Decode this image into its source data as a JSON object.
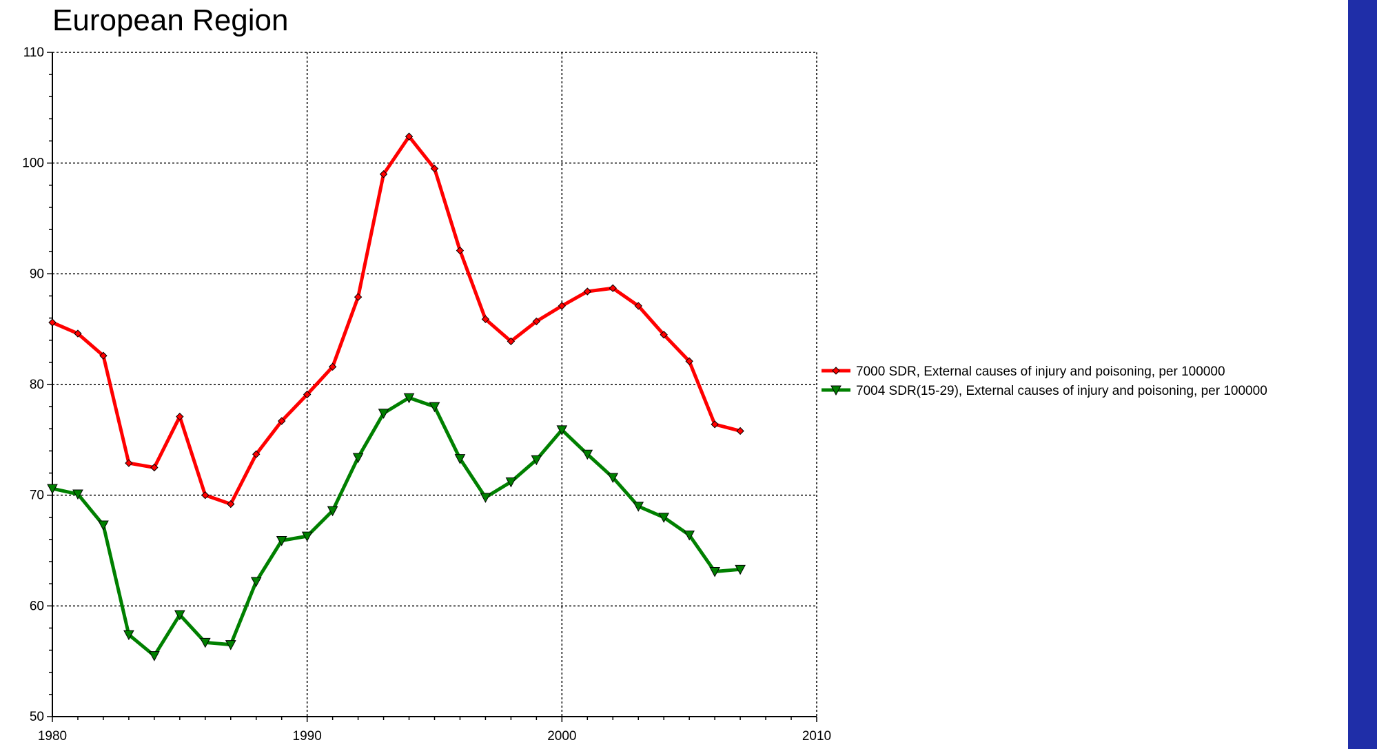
{
  "chart_data": {
    "type": "line",
    "title": "European Region",
    "xlabel": "",
    "ylabel": "",
    "xlim": [
      1980,
      2010
    ],
    "ylim": [
      50,
      110
    ],
    "xticks": [
      1980,
      1990,
      2000,
      2010
    ],
    "yticks": [
      50,
      60,
      70,
      80,
      90,
      100,
      110
    ],
    "grid": true,
    "legend_position": "right",
    "x": [
      1980,
      1981,
      1982,
      1983,
      1984,
      1985,
      1986,
      1987,
      1988,
      1989,
      1990,
      1991,
      1992,
      1993,
      1994,
      1995,
      1996,
      1997,
      1998,
      1999,
      2000,
      2001,
      2002,
      2003,
      2004,
      2005,
      2006,
      2007
    ],
    "series": [
      {
        "name": "7000 SDR, External causes of injury and poisoning, per 100000",
        "color": "#ff0000",
        "marker": "diamond",
        "values": [
          85.6,
          84.6,
          82.6,
          72.9,
          72.5,
          77.1,
          70.0,
          69.2,
          73.7,
          76.7,
          79.1,
          81.6,
          87.9,
          99.0,
          102.4,
          99.5,
          92.1,
          85.9,
          83.9,
          85.7,
          87.1,
          88.4,
          88.7,
          87.1,
          84.5,
          82.1,
          76.4,
          75.8
        ]
      },
      {
        "name": "7004 SDR(15-29), External causes of injury and poisoning, per 100000",
        "color": "#008000",
        "marker": "triangle-down",
        "values": [
          70.6,
          70.1,
          67.3,
          57.4,
          55.5,
          59.2,
          56.7,
          56.5,
          62.2,
          65.9,
          66.3,
          68.6,
          73.4,
          77.4,
          78.8,
          78.0,
          73.3,
          69.8,
          71.2,
          73.2,
          75.9,
          73.7,
          71.6,
          69.0,
          68.0,
          66.4,
          63.1,
          63.3
        ]
      }
    ]
  }
}
